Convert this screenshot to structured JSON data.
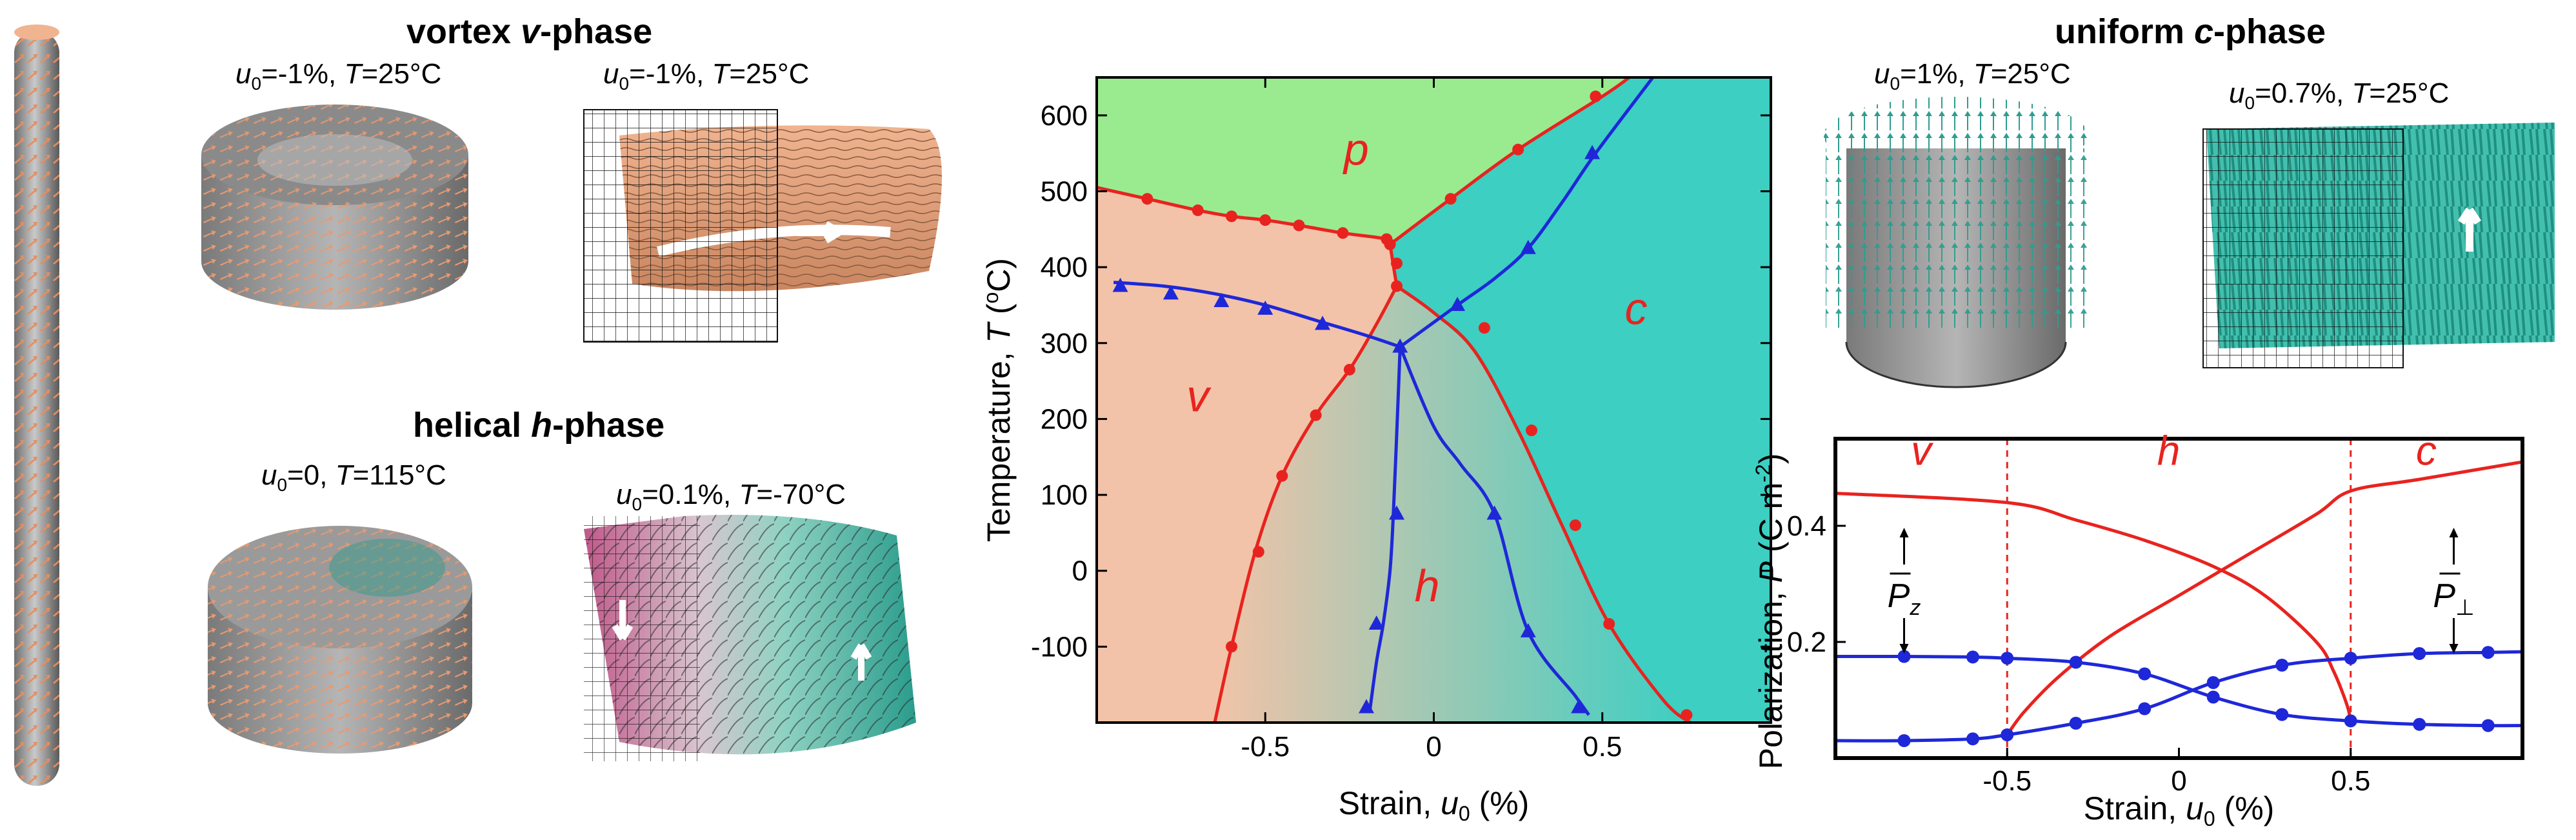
{
  "titles": {
    "vortex": {
      "bold": "vortex ",
      "italic": "v",
      "rest": "-phase"
    },
    "helical": {
      "bold": "helical ",
      "italic": "h",
      "rest": "-phase"
    },
    "uniform": {
      "bold": "uniform ",
      "italic": "c",
      "rest": "-phase"
    }
  },
  "panel_labels": [
    {
      "id": "vortex-left",
      "u": "u",
      "sub": "0",
      "val": "=-1%, ",
      "T": "T",
      "tval": "=25°C"
    },
    {
      "id": "vortex-right",
      "u": "u",
      "sub": "0",
      "val": "=-1%, ",
      "T": "T",
      "tval": "=25°C"
    },
    {
      "id": "helical-left",
      "u": "u",
      "sub": "0",
      "val": "=0, ",
      "T": "T",
      "tval": "=115°C"
    },
    {
      "id": "helical-right",
      "u": "u",
      "sub": "0",
      "val": "=0.1%, ",
      "T": "T",
      "tval": "=-70°C"
    },
    {
      "id": "uniform-left",
      "u": "u",
      "sub": "0",
      "val": "=1%, ",
      "T": "T",
      "tval": "=25°C"
    },
    {
      "id": "uniform-right",
      "u": "u",
      "sub": "0",
      "val": "=0.7%, ",
      "T": "T",
      "tval": "=25°C"
    }
  ],
  "colors": {
    "p_phase": "#9aeb8f",
    "v_phase": "#f2c3a8",
    "c_phase": "#3ccfc2",
    "red": "#e8231f",
    "blue": "#1e28d8",
    "copper": "#e8a47e",
    "teal": "#2a9c8c",
    "magenta": "#c05a8a",
    "gray": "#8c8c8c"
  },
  "chart_data": [
    {
      "type": "line",
      "xlabel": {
        "text": "Strain, ",
        "var": "u",
        "sub": "0",
        "unit": " (%)"
      },
      "ylabel": {
        "text": "Temperature, ",
        "var": "T",
        "unit_open": " (",
        "sup": "o",
        "unit_close": "C)"
      },
      "xlim": [
        -1.0,
        1.0
      ],
      "ylim": [
        -200,
        650
      ],
      "xticks": [
        -0.5,
        0,
        0.5
      ],
      "xticklabels": [
        "-0.5",
        "0",
        "0.5"
      ],
      "yticks": [
        -100,
        0,
        100,
        200,
        300,
        400,
        500,
        600
      ],
      "yticklabels": [
        "-100",
        "0",
        "100",
        "200",
        "300",
        "400",
        "500",
        "600"
      ],
      "region_labels": [
        {
          "text": "p",
          "x": -0.23,
          "y": 535
        },
        {
          "text": "v",
          "x": -0.7,
          "y": 210
        },
        {
          "text": "c",
          "x": 0.6,
          "y": 325
        },
        {
          "text": "h",
          "x": -0.02,
          "y": -40
        }
      ],
      "series": [
        {
          "style": "red-circle",
          "x": [
            -1.0,
            -0.85,
            -0.7,
            -0.6,
            -0.5,
            -0.4,
            -0.27,
            -0.14,
            -0.13
          ],
          "y": [
            505,
            490,
            475,
            467,
            462,
            455,
            445,
            437,
            430
          ]
        },
        {
          "style": "red-circle",
          "x": [
            -0.13,
            0.05,
            0.25,
            0.5,
            0.58
          ],
          "y": [
            430,
            490,
            555,
            625,
            650
          ]
        },
        {
          "style": "red-circle",
          "x": [
            -0.13,
            -0.11
          ],
          "y": [
            430,
            375
          ]
        },
        {
          "style": "red-circle",
          "x": [
            -0.65,
            -0.6,
            -0.53,
            -0.45,
            -0.35,
            -0.25,
            -0.17,
            -0.11
          ],
          "y": [
            -200,
            -100,
            25,
            125,
            205,
            265,
            325,
            375
          ]
        },
        {
          "style": "red-circle",
          "x": [
            -0.11,
            0.0,
            0.12,
            0.25,
            0.38,
            0.52,
            0.68,
            0.76
          ],
          "y": [
            375,
            340,
            290,
            185,
            60,
            -70,
            -170,
            -200
          ]
        },
        {
          "style": "blue-triangle",
          "x": [
            -0.95,
            -0.8,
            -0.65,
            -0.5,
            -0.35,
            -0.2,
            -0.1
          ],
          "y": [
            380,
            375,
            365,
            350,
            330,
            310,
            295
          ]
        },
        {
          "style": "blue-triangle",
          "x": [
            -0.1,
            0.07,
            0.18,
            0.28,
            0.38,
            0.48,
            0.65
          ],
          "y": [
            295,
            350,
            385,
            425,
            485,
            550,
            650
          ]
        },
        {
          "style": "blue-triangle",
          "x": [
            -0.1,
            -0.11,
            -0.12,
            -0.13,
            -0.15,
            -0.17,
            -0.19
          ],
          "y": [
            295,
            180,
            75,
            0,
            -70,
            -120,
            -185
          ]
        },
        {
          "style": "blue-triangle",
          "x": [
            -0.1,
            0.0,
            0.08,
            0.18,
            0.28,
            0.42,
            0.46
          ],
          "y": [
            295,
            190,
            140,
            75,
            -80,
            -165,
            -190
          ]
        }
      ],
      "marker_points": {
        "red": [
          [
            -0.85,
            490
          ],
          [
            -0.7,
            475
          ],
          [
            -0.6,
            467
          ],
          [
            -0.5,
            462
          ],
          [
            -0.4,
            455
          ],
          [
            -0.27,
            445
          ],
          [
            -0.14,
            437
          ],
          [
            -0.13,
            430
          ],
          [
            -0.11,
            405
          ],
          [
            -0.11,
            375
          ],
          [
            0.05,
            490
          ],
          [
            0.25,
            555
          ],
          [
            0.48,
            625
          ],
          [
            -0.6,
            -100
          ],
          [
            -0.52,
            25
          ],
          [
            -0.45,
            125
          ],
          [
            -0.35,
            205
          ],
          [
            -0.25,
            265
          ],
          [
            0.15,
            320
          ],
          [
            0.29,
            185
          ],
          [
            0.42,
            60
          ],
          [
            0.52,
            -70
          ],
          [
            0.75,
            -190
          ]
        ],
        "blue": [
          [
            -0.93,
            375
          ],
          [
            -0.78,
            365
          ],
          [
            -0.63,
            355
          ],
          [
            -0.5,
            345
          ],
          [
            -0.33,
            325
          ],
          [
            -0.1,
            295
          ],
          [
            0.07,
            350
          ],
          [
            0.28,
            425
          ],
          [
            0.47,
            550
          ],
          [
            -0.11,
            75
          ],
          [
            -0.17,
            -70
          ],
          [
            -0.2,
            -180
          ],
          [
            0.18,
            75
          ],
          [
            0.28,
            -80
          ],
          [
            0.43,
            -180
          ]
        ]
      }
    },
    {
      "type": "line",
      "xlabel": {
        "text": "Strain, ",
        "var": "u",
        "sub": "0",
        "unit": " (%)"
      },
      "ylabel": {
        "text": "Polarization, ",
        "var": "P",
        "unit": " (C m",
        "sup": "-2",
        "close": ")"
      },
      "xlim": [
        -1.0,
        1.0
      ],
      "ylim": [
        0.0,
        0.55
      ],
      "xticks": [
        -0.5,
        0,
        0.5
      ],
      "xticklabels": [
        "-0.5",
        "0",
        "0.5"
      ],
      "yticks": [
        0.2,
        0.4
      ],
      "yticklabels": [
        "0.2",
        "0.4"
      ],
      "vlines": [
        -0.5,
        0.5
      ],
      "region_labels": [
        {
          "text": "v",
          "x": -0.75,
          "y": 0.505
        },
        {
          "text": "h",
          "x": -0.03,
          "y": 0.505
        },
        {
          "text": "c",
          "x": 0.72,
          "y": 0.505
        }
      ],
      "annotations": [
        {
          "name": "Pz",
          "base": "P",
          "sub": "z",
          "x": -0.8,
          "y": 0.28
        },
        {
          "name": "Pperp",
          "base": "P",
          "sub": "⊥",
          "x": 0.8,
          "y": 0.28
        }
      ],
      "series": [
        {
          "style": "red",
          "x": [
            -1.0,
            -0.5,
            -0.3,
            -0.1,
            0.1,
            0.25,
            0.4,
            0.45,
            0.49,
            0.5
          ],
          "y": [
            0.456,
            0.44,
            0.41,
            0.375,
            0.33,
            0.28,
            0.2,
            0.15,
            0.09,
            0.06
          ]
        },
        {
          "style": "red",
          "x": [
            -0.5,
            -0.45,
            -0.35,
            -0.2,
            0.0,
            0.2,
            0.4,
            0.5,
            0.7,
            1.0
          ],
          "y": [
            0.04,
            0.08,
            0.14,
            0.21,
            0.28,
            0.35,
            0.42,
            0.46,
            0.48,
            0.51
          ]
        },
        {
          "style": "blue-circle",
          "x": [
            -1.0,
            -0.8,
            -0.6,
            -0.5,
            -0.3,
            -0.1,
            0.1,
            0.3,
            0.5,
            0.7,
            0.9,
            1.0
          ],
          "y": [
            0.175,
            0.175,
            0.174,
            0.172,
            0.165,
            0.145,
            0.105,
            0.075,
            0.064,
            0.058,
            0.056,
            0.056
          ]
        },
        {
          "style": "blue-circle",
          "x": [
            -1.0,
            -0.8,
            -0.6,
            -0.5,
            -0.3,
            -0.1,
            0.1,
            0.3,
            0.5,
            0.7,
            0.9,
            1.0
          ],
          "y": [
            0.03,
            0.03,
            0.033,
            0.04,
            0.06,
            0.085,
            0.13,
            0.16,
            0.172,
            0.18,
            0.182,
            0.183
          ]
        }
      ]
    }
  ]
}
